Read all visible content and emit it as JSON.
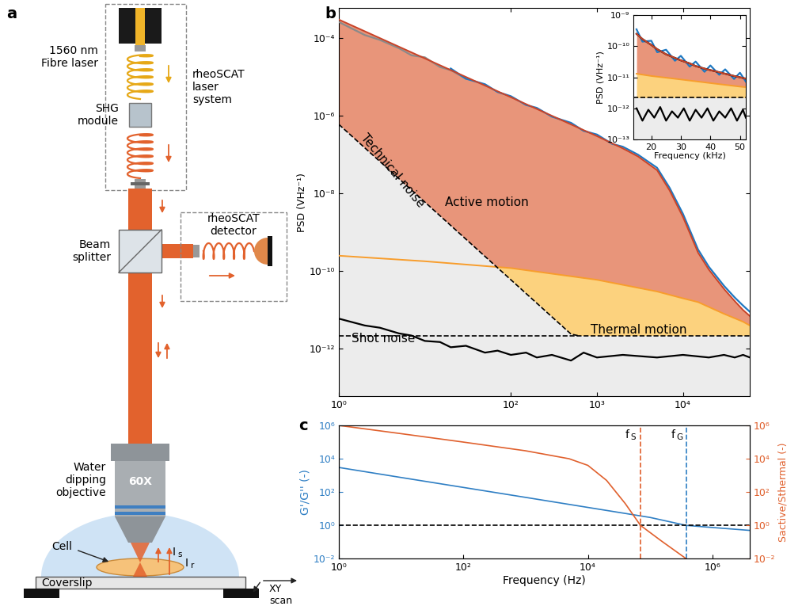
{
  "diagram": {
    "panel_label": "a",
    "texts": {
      "laser": "1560 nm\nFibre laser",
      "laser_system": "rheoSCAT\nlaser\nsystem",
      "shg": "SHG\nmodule",
      "beam_splitter": "Beam\nsplitter",
      "detector": "rheoSCAT\ndetector",
      "objective": "Water\ndipping\nobjective",
      "magnification": "60X",
      "cell": "Cell",
      "scattered": "Is",
      "reference": "Ir",
      "coverslip": "Coverslip",
      "scan": "XY\nscan"
    }
  },
  "chart_data": [
    {
      "panel_label": "b",
      "type": "line",
      "log": true,
      "ylabel": "PSD (VHz⁻¹)",
      "xlim": [
        1,
        60000
      ],
      "ylim": [
        6e-14,
        0.0006
      ],
      "xticks": [
        {
          "value": 1,
          "label": "10⁰"
        },
        {
          "value": 100,
          "label": "10²"
        },
        {
          "value": 1000,
          "label": "10³"
        },
        {
          "value": 10000,
          "label": "10⁴"
        }
      ],
      "yticks": [
        {
          "value": 1e-12,
          "label": "10⁻¹²"
        },
        {
          "value": 1e-10,
          "label": "10⁻¹⁰"
        },
        {
          "value": 1e-08,
          "label": "10⁻⁸"
        },
        {
          "value": 1e-06,
          "label": "10⁻⁶"
        },
        {
          "value": 0.0001,
          "label": "10⁻⁴"
        }
      ],
      "series": [
        {
          "name": "Active motion",
          "type": "area",
          "color": "#e8957a",
          "x": [
            1,
            2,
            5,
            10,
            20,
            50,
            100,
            200,
            500,
            1000,
            2000,
            3000,
            5000,
            7000,
            10000,
            15000,
            20000,
            30000,
            40000,
            50000,
            60000
          ],
          "values": [
            0.0003,
            0.00015,
            6e-05,
            3e-05,
            1.5e-05,
            6e-06,
            3e-06,
            1.5e-06,
            6e-07,
            3e-07,
            1.45e-07,
            9e-08,
            4e-08,
            1.2e-08,
            2.5e-09,
            3e-10,
            1.1e-10,
            3.5e-11,
            1.7e-11,
            1e-11,
            7e-12
          ]
        },
        {
          "name": "Thermal motion",
          "type": "area",
          "color": "#fcd27e",
          "x": [
            1,
            10,
            100,
            1000,
            5000,
            10000,
            15000,
            20000,
            30000,
            50000,
            60000
          ],
          "values": [
            2.5e-10,
            1.8e-10,
            1.2e-10,
            6e-11,
            3e-11,
            2e-11,
            1.6e-11,
            1.2e-11,
            8e-12,
            5e-12,
            4e-12
          ]
        },
        {
          "name": "Technical noise",
          "type": "line",
          "color": "#000000",
          "line_style": "dashed",
          "x": [
            1,
            2,
            5,
            10,
            20,
            50,
            100,
            200,
            500,
            600
          ],
          "values": [
            6e-07,
            1.5e-07,
            2.4e-08,
            6e-09,
            1.5e-09,
            2.4e-10,
            6e-11,
            1.5e-11,
            2.4e-12,
            2.2e-12
          ]
        },
        {
          "name": "Shot noise",
          "type": "line",
          "color": "#000000",
          "line_style": "dashed",
          "x": [
            1,
            60000
          ],
          "values": [
            2.2e-12,
            2.2e-12
          ]
        },
        {
          "type": "line",
          "color": "#000000",
          "x": [
            1,
            2,
            3,
            5,
            7,
            10,
            15,
            20,
            30,
            50,
            70,
            100,
            150,
            200,
            300,
            500,
            700,
            1000,
            2000,
            5000,
            10000,
            20000,
            30000,
            40000,
            50000,
            60000
          ],
          "values": [
            6e-12,
            4e-12,
            3.5e-12,
            2.5e-12,
            2.2e-12,
            1.6e-12,
            1.5e-12,
            1.1e-12,
            1.2e-12,
            8e-13,
            9e-13,
            7e-13,
            8e-13,
            6e-13,
            7e-13,
            5e-13,
            8e-13,
            6e-13,
            7e-13,
            6e-13,
            7e-13,
            6e-13,
            7e-13,
            6e-13,
            7e-13,
            6e-13
          ]
        },
        {
          "type": "line",
          "color": "#8a8a8a",
          "x": [
            1,
            2,
            3,
            5,
            7,
            10,
            15,
            20,
            30
          ],
          "values": [
            0.00026,
            0.00012,
            9e-05,
            5.5e-05,
            3.6e-05,
            3.2e-05,
            1.8e-05,
            1.5e-05,
            9e-06
          ]
        },
        {
          "type": "line",
          "color": "#1f78c1",
          "x": [
            20,
            30,
            50,
            70,
            100,
            150,
            200,
            300,
            500,
            700,
            1000,
            1500,
            2000,
            3000,
            5000,
            7000,
            10000,
            15000,
            20000,
            30000,
            40000,
            50000,
            60000
          ],
          "values": [
            1.65e-05,
            9e-06,
            6.5e-06,
            4.1e-06,
            3.2e-06,
            1.9e-06,
            1.6e-06,
            9.5e-07,
            6.6e-07,
            4.1e-07,
            3.3e-07,
            1.9e-07,
            1.6e-07,
            1e-07,
            4.6e-08,
            1.4e-08,
            3e-09,
            3.6e-10,
            1.3e-10,
            4.2e-11,
            2.1e-11,
            1.3e-11,
            9e-12
          ]
        }
      ]
    },
    {
      "type": "line",
      "log": "y",
      "xlabel": "Frequency (kHz)",
      "ylabel": "PSD (VHz⁻¹)",
      "xlim": [
        14,
        52
      ],
      "ylim": [
        1e-13,
        1e-09
      ],
      "xticks": [
        20,
        30,
        40,
        50
      ],
      "yticks": [
        {
          "value": 1e-13,
          "label": "10⁻¹³"
        },
        {
          "value": 1e-12,
          "label": "10⁻¹²"
        },
        {
          "value": 1e-11,
          "label": "10⁻¹¹"
        },
        {
          "value": 1e-10,
          "label": "10⁻¹⁰"
        },
        {
          "value": 1e-09,
          "label": "10⁻⁹"
        }
      ],
      "series": [
        {
          "type": "area",
          "color": "#e8957a",
          "x": [
            15,
            17,
            20,
            22,
            25,
            28,
            30,
            33,
            35,
            38,
            40,
            43,
            45,
            48,
            50,
            52
          ],
          "values": [
            2.5e-10,
            1.7e-10,
            1.1e-10,
            8e-11,
            5.5e-11,
            4.2e-11,
            3.5e-11,
            2.8e-11,
            2.3e-11,
            1.9e-11,
            1.7e-11,
            1.45e-11,
            1.3e-11,
            1.1e-11,
            1e-11,
            9e-12
          ]
        },
        {
          "type": "area",
          "color": "#fcd27e",
          "x": [
            15,
            20,
            30,
            40,
            50,
            52
          ],
          "values": [
            1.3e-11,
            1.1e-11,
            8.5e-12,
            6.5e-12,
            5e-12,
            4.8e-12
          ]
        },
        {
          "type": "line",
          "color": "#000000",
          "line_style": "dashed",
          "x": [
            14,
            52
          ],
          "values": [
            2.2e-12,
            2.2e-12
          ]
        },
        {
          "type": "line",
          "color": "#000000",
          "x": [
            15,
            17,
            19,
            21,
            23,
            25,
            27,
            29,
            31,
            33,
            35,
            37,
            39,
            41,
            43,
            45,
            47,
            49,
            51,
            52
          ],
          "values": [
            1e-12,
            4e-13,
            9e-13,
            5e-13,
            1.1e-12,
            4e-13,
            8e-13,
            5e-13,
            1e-12,
            4e-13,
            9e-13,
            5e-13,
            1e-12,
            4e-13,
            8e-13,
            5e-13,
            1e-12,
            4e-13,
            9e-13,
            5e-13
          ]
        },
        {
          "type": "line",
          "color": "#1f78c1",
          "x": [
            15,
            17,
            20,
            22,
            25,
            28,
            30,
            33,
            35,
            38,
            40,
            43,
            45,
            48,
            50,
            52
          ],
          "values": [
            3.5e-10,
            1.4e-10,
            1.5e-10,
            6.4e-11,
            7.7e-11,
            3.4e-11,
            4.9e-11,
            2.2e-11,
            3.2e-11,
            1.5e-11,
            2.4e-11,
            1.2e-11,
            1.8e-11,
            8.8e-12,
            1.4e-11,
            7.2e-12
          ]
        },
        {
          "type": "line",
          "color": "#000000",
          "x": [
            15,
            17,
            20,
            22,
            25,
            28,
            30,
            33,
            35,
            38,
            40,
            43,
            45,
            48,
            50,
            52
          ],
          "values": [
            2.5e-10,
            1.7e-10,
            1.1e-10,
            8e-11,
            5.5e-11,
            4.2e-11,
            3.5e-11,
            2.8e-11,
            2.3e-11,
            1.9e-11,
            1.7e-11,
            1.45e-11,
            1.3e-11,
            1.1e-11,
            1e-11,
            9e-12
          ]
        }
      ]
    },
    {
      "panel_label": "c",
      "type": "line",
      "log": true,
      "xlabel": "Frequency (Hz)",
      "ylabel": "G'/G'' (-)",
      "y2label": "Sactive/Sthermal (-)",
      "xlim": [
        1,
        4000000
      ],
      "ylim": [
        0.01,
        1000000
      ],
      "y2lim": [
        0.01,
        1000000
      ],
      "xticks": [
        {
          "value": 1,
          "label": "10⁰"
        },
        {
          "value": 100,
          "label": "10²"
        },
        {
          "value": 10000,
          "label": "10⁴"
        },
        {
          "value": 1000000,
          "label": "10⁶"
        }
      ],
      "yticks": [
        {
          "value": 0.01,
          "label": "10⁻²"
        },
        {
          "value": 1,
          "label": "10⁰"
        },
        {
          "value": 100,
          "label": "10²"
        },
        {
          "value": 10000,
          "label": "10⁴"
        },
        {
          "value": 1000000,
          "label": "10⁶"
        }
      ],
      "y2ticks": [
        {
          "value": 0.01,
          "label": "10⁻²"
        },
        {
          "value": 1,
          "label": "10⁰"
        },
        {
          "value": 100,
          "label": "10²"
        },
        {
          "value": 10000,
          "label": "10⁴"
        },
        {
          "value": 1000000,
          "label": "10⁶"
        }
      ],
      "series": [
        {
          "type": "line",
          "color": "#2f7fc4",
          "x": [
            1,
            10,
            100,
            1000,
            10000,
            100000,
            380000,
            1000000,
            4000000
          ],
          "values": [
            3000,
            750,
            190,
            48,
            12,
            3,
            1,
            0.75,
            0.5
          ]
        },
        {
          "type": "line",
          "color": "#e0602d",
          "axis": "y2",
          "x": [
            1,
            10,
            100,
            1000,
            5000,
            10000,
            20000,
            40000,
            70000,
            150000,
            380000
          ],
          "values": [
            1000000,
            320000,
            100000,
            30000,
            10000,
            4000,
            500,
            20,
            1,
            0.12,
            0.01
          ]
        },
        {
          "type": "line",
          "color": "#000000",
          "line_style": "dashed",
          "x": [
            1,
            4000000
          ],
          "values": [
            1,
            1
          ]
        }
      ],
      "annotations": [
        {
          "text": "fS",
          "x": 70000,
          "color": "#e0602d"
        },
        {
          "text": "fG",
          "x": 380000,
          "color": "#2f7fc4"
        }
      ]
    }
  ]
}
